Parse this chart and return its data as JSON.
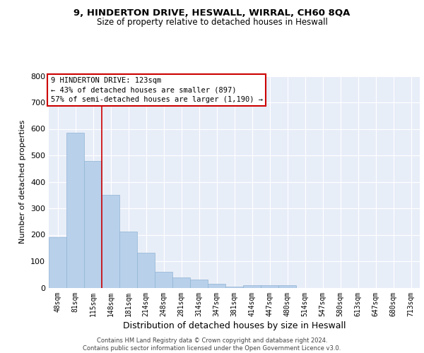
{
  "title": "9, HINDERTON DRIVE, HESWALL, WIRRAL, CH60 8QA",
  "subtitle": "Size of property relative to detached houses in Heswall",
  "xlabel": "Distribution of detached houses by size in Heswall",
  "ylabel": "Number of detached properties",
  "categories": [
    "48sqm",
    "81sqm",
    "115sqm",
    "148sqm",
    "181sqm",
    "214sqm",
    "248sqm",
    "281sqm",
    "314sqm",
    "347sqm",
    "381sqm",
    "414sqm",
    "447sqm",
    "480sqm",
    "514sqm",
    "547sqm",
    "580sqm",
    "613sqm",
    "647sqm",
    "680sqm",
    "713sqm"
  ],
  "values": [
    192,
    585,
    480,
    352,
    212,
    132,
    60,
    38,
    32,
    15,
    5,
    10,
    10,
    10,
    0,
    0,
    0,
    0,
    0,
    0,
    0
  ],
  "bar_color": "#b8d0ea",
  "bar_edge_color": "#90b4d4",
  "background_color": "#e8eef8",
  "grid_color": "#ffffff",
  "annotation_text": "9 HINDERTON DRIVE: 123sqm\n← 43% of detached houses are smaller (897)\n57% of semi-detached houses are larger (1,190) →",
  "annotation_box_color": "#ffffff",
  "annotation_box_edge_color": "#cc0000",
  "vline_color": "#cc0000",
  "ylim": [
    0,
    800
  ],
  "yticks": [
    0,
    100,
    200,
    300,
    400,
    500,
    600,
    700,
    800
  ],
  "footer_line1": "Contains HM Land Registry data © Crown copyright and database right 2024.",
  "footer_line2": "Contains public sector information licensed under the Open Government Licence v3.0."
}
